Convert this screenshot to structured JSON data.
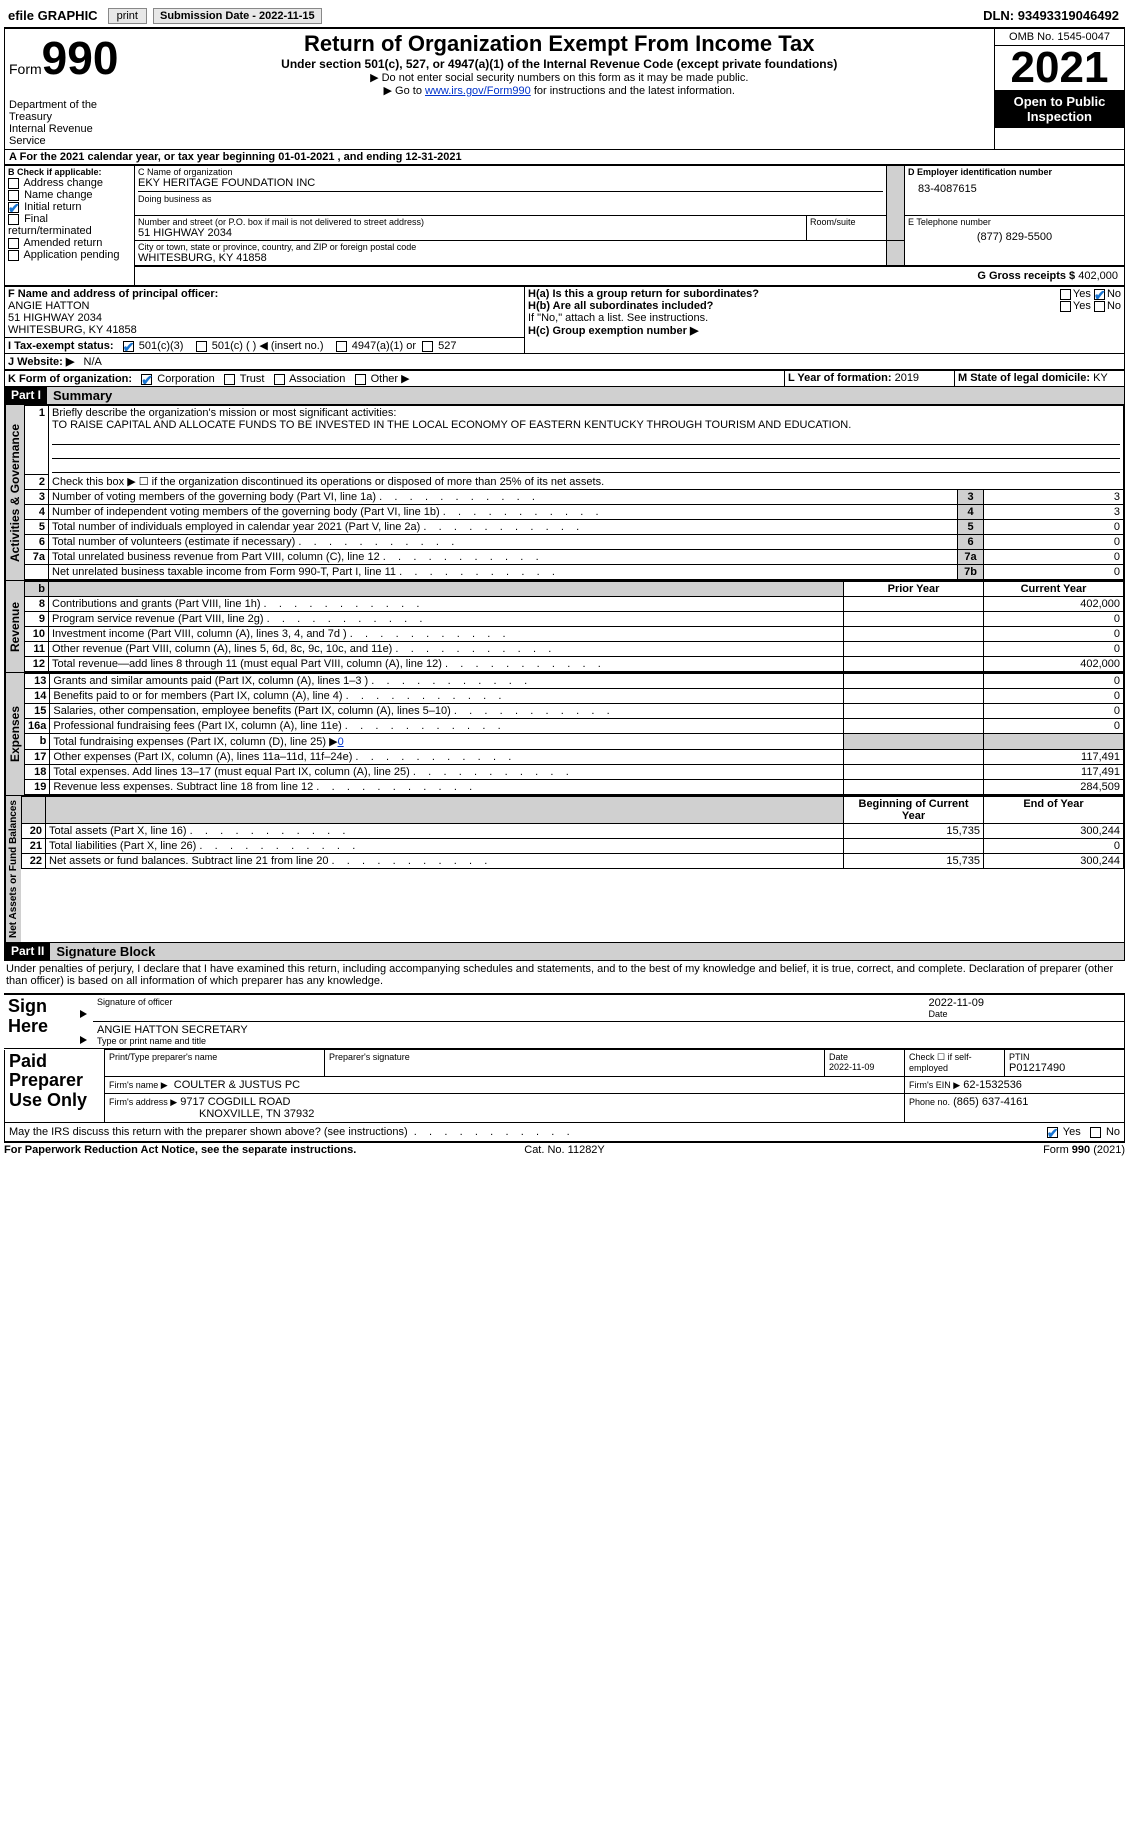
{
  "topbar": {
    "efile": "efile GRAPHIC",
    "print": "print",
    "subdate_label": "Submission Date - 2022-11-15",
    "dln_label": "DLN:",
    "dln": "93493319046492"
  },
  "header": {
    "form_word": "Form",
    "form_num": "990",
    "dept": "Department of the Treasury\nInternal Revenue Service",
    "title": "Return of Organization Exempt From Income Tax",
    "subtitle": "Under section 501(c), 527, or 4947(a)(1) of the Internal Revenue Code (except private foundations)",
    "note1": "▶ Do not enter social security numbers on this form as it may be made public.",
    "note2_pre": "▶ Go to ",
    "note2_link": "www.irs.gov/Form990",
    "note2_post": " for instructions and the latest information.",
    "omb": "OMB No. 1545-0047",
    "year": "2021",
    "openpub": "Open to Public Inspection"
  },
  "sectionA": {
    "text": "For the 2021 calendar year, or tax year beginning 01-01-2021   , and ending 12-31-2021"
  },
  "boxB": {
    "label": "B Check if applicable:",
    "items": [
      "Address change",
      "Name change",
      "Initial return",
      "Final return/terminated",
      "Amended return",
      "Application pending"
    ],
    "checked_idx": 2
  },
  "boxC": {
    "name_label": "C Name of organization",
    "name": "EKY HERITAGE FOUNDATION INC",
    "dba_label": "Doing business as",
    "dba": "",
    "street_label": "Number and street (or P.O. box if mail is not delivered to street address)",
    "room_label": "Room/suite",
    "street": "51 HIGHWAY 2034",
    "city_label": "City or town, state or province, country, and ZIP or foreign postal code",
    "city": "WHITESBURG, KY  41858"
  },
  "boxD": {
    "label": "D Employer identification number",
    "val": "83-4087615"
  },
  "boxE": {
    "label": "E Telephone number",
    "val": "(877) 829-5500"
  },
  "boxG": {
    "label": "G Gross receipts $",
    "val": "402,000"
  },
  "boxF": {
    "label": "F  Name and address of principal officer:",
    "name": "ANGIE HATTON",
    "addr1": "51 HIGHWAY 2034",
    "addr2": "WHITESBURG, KY  41858"
  },
  "boxH": {
    "ha_label": "H(a)  Is this a group return for subordinates?",
    "hb_label": "H(b)  Are all subordinates included?",
    "hb_note": "If \"No,\" attach a list. See instructions.",
    "hc_label": "H(c)  Group exemption number ▶",
    "yes": "Yes",
    "no": "No"
  },
  "boxI": {
    "label": "I   Tax-exempt status:",
    "opt1": "501(c)(3)",
    "opt2": "501(c) (  ) ◀ (insert no.)",
    "opt3": "4947(a)(1) or",
    "opt4": "527"
  },
  "boxJ": {
    "label": "J   Website: ▶",
    "val": "N/A"
  },
  "boxK": {
    "label": "K Form of organization:",
    "opts": [
      "Corporation",
      "Trust",
      "Association",
      "Other ▶"
    ]
  },
  "boxL": {
    "label": "L Year of formation:",
    "val": "2019"
  },
  "boxM": {
    "label": "M State of legal domicile:",
    "val": "KY"
  },
  "part1": {
    "bar": "Part I",
    "title": "Summary",
    "side_act": "Activities & Governance",
    "side_rev": "Revenue",
    "side_exp": "Expenses",
    "side_net": "Net Assets or Fund Balances",
    "l1_label": "Briefly describe the organization's mission or most significant activities:",
    "l1_text": "TO RAISE CAPITAL AND ALLOCATE FUNDS TO BE INVESTED IN THE LOCAL ECONOMY OF EASTERN KENTUCKY THROUGH TOURISM AND EDUCATION.",
    "l2": "Check this box ▶ ☐  if the organization discontinued its operations or disposed of more than 25% of its net assets.",
    "lines_gov": [
      {
        "n": "3",
        "t": "Number of voting members of the governing body (Part VI, line 1a)",
        "num": "3",
        "v": "3"
      },
      {
        "n": "4",
        "t": "Number of independent voting members of the governing body (Part VI, line 1b)",
        "num": "4",
        "v": "3"
      },
      {
        "n": "5",
        "t": "Total number of individuals employed in calendar year 2021 (Part V, line 2a)",
        "num": "5",
        "v": "0"
      },
      {
        "n": "6",
        "t": "Total number of volunteers (estimate if necessary)",
        "num": "6",
        "v": "0"
      },
      {
        "n": "7a",
        "t": "Total unrelated business revenue from Part VIII, column (C), line 12",
        "num": "7a",
        "v": "0"
      },
      {
        "n": "",
        "t": "Net unrelated business taxable income from Form 990-T, Part I, line 11",
        "num": "7b",
        "v": "0"
      }
    ],
    "py_label": "Prior Year",
    "cy_label": "Current Year",
    "lines_rev": [
      {
        "n": "8",
        "t": "Contributions and grants (Part VIII, line 1h)",
        "py": "",
        "cy": "402,000"
      },
      {
        "n": "9",
        "t": "Program service revenue (Part VIII, line 2g)",
        "py": "",
        "cy": "0"
      },
      {
        "n": "10",
        "t": "Investment income (Part VIII, column (A), lines 3, 4, and 7d )",
        "py": "",
        "cy": "0"
      },
      {
        "n": "11",
        "t": "Other revenue (Part VIII, column (A), lines 5, 6d, 8c, 9c, 10c, and 11e)",
        "py": "",
        "cy": "0"
      },
      {
        "n": "12",
        "t": "Total revenue—add lines 8 through 11 (must equal Part VIII, column (A), line 12)",
        "py": "",
        "cy": "402,000"
      }
    ],
    "lines_exp": [
      {
        "n": "13",
        "t": "Grants and similar amounts paid (Part IX, column (A), lines 1–3 )",
        "py": "",
        "cy": "0"
      },
      {
        "n": "14",
        "t": "Benefits paid to or for members (Part IX, column (A), line 4)",
        "py": "",
        "cy": "0"
      },
      {
        "n": "15",
        "t": "Salaries, other compensation, employee benefits (Part IX, column (A), lines 5–10)",
        "py": "",
        "cy": "0"
      },
      {
        "n": "16a",
        "t": "Professional fundraising fees (Part IX, column (A), line 11e)",
        "py": "",
        "cy": "0"
      },
      {
        "n": "b",
        "t": "Total fundraising expenses (Part IX, column (D), line 25) ▶",
        "py": "gray",
        "cy": "gray",
        "link": "0"
      },
      {
        "n": "17",
        "t": "Other expenses (Part IX, column (A), lines 11a–11d, 11f–24e)",
        "py": "",
        "cy": "117,491"
      },
      {
        "n": "18",
        "t": "Total expenses. Add lines 13–17 (must equal Part IX, column (A), line 25)",
        "py": "",
        "cy": "117,491"
      },
      {
        "n": "19",
        "t": "Revenue less expenses. Subtract line 18 from line 12",
        "py": "",
        "cy": "284,509"
      }
    ],
    "boy_label": "Beginning of Current Year",
    "eoy_label": "End of Year",
    "lines_net": [
      {
        "n": "20",
        "t": "Total assets (Part X, line 16)",
        "py": "15,735",
        "cy": "300,244"
      },
      {
        "n": "21",
        "t": "Total liabilities (Part X, line 26)",
        "py": "",
        "cy": "0"
      },
      {
        "n": "22",
        "t": "Net assets or fund balances. Subtract line 21 from line 20",
        "py": "15,735",
        "cy": "300,244"
      }
    ]
  },
  "part2": {
    "bar": "Part II",
    "title": "Signature Block",
    "decl": "Under penalties of perjury, I declare that I have examined this return, including accompanying schedules and statements, and to the best of my knowledge and belief, it is true, correct, and complete. Declaration of preparer (other than officer) is based on all information of which preparer has any knowledge.",
    "sign_here": "Sign Here",
    "sig_officer": "Signature of officer",
    "sig_date": "Date",
    "sig_date_val": "2022-11-09",
    "officer_name": "ANGIE HATTON  SECRETARY",
    "type_name": "Type or print name and title",
    "paid": "Paid Preparer Use Only",
    "prep_name_lbl": "Print/Type preparer's name",
    "prep_sig_lbl": "Preparer's signature",
    "prep_date_lbl": "Date",
    "prep_date": "2022-11-09",
    "check_self": "Check ☐ if self-employed",
    "ptin_lbl": "PTIN",
    "ptin": "P01217490",
    "firm_name_lbl": "Firm's name   ▶",
    "firm_name": "COULTER & JUSTUS PC",
    "firm_ein_lbl": "Firm's EIN ▶",
    "firm_ein": "62-1532536",
    "firm_addr_lbl": "Firm's address ▶",
    "firm_addr1": "9717 COGDILL ROAD",
    "firm_addr2": "KNOXVILLE, TN  37932",
    "phone_lbl": "Phone no.",
    "phone": "(865) 637-4161",
    "discuss": "May the IRS discuss this return with the preparer shown above? (see instructions)",
    "yes": "Yes",
    "no": "No"
  },
  "footer": {
    "pra": "For Paperwork Reduction Act Notice, see the separate instructions.",
    "cat": "Cat. No. 11282Y",
    "formrev": "Form 990 (2021)"
  }
}
